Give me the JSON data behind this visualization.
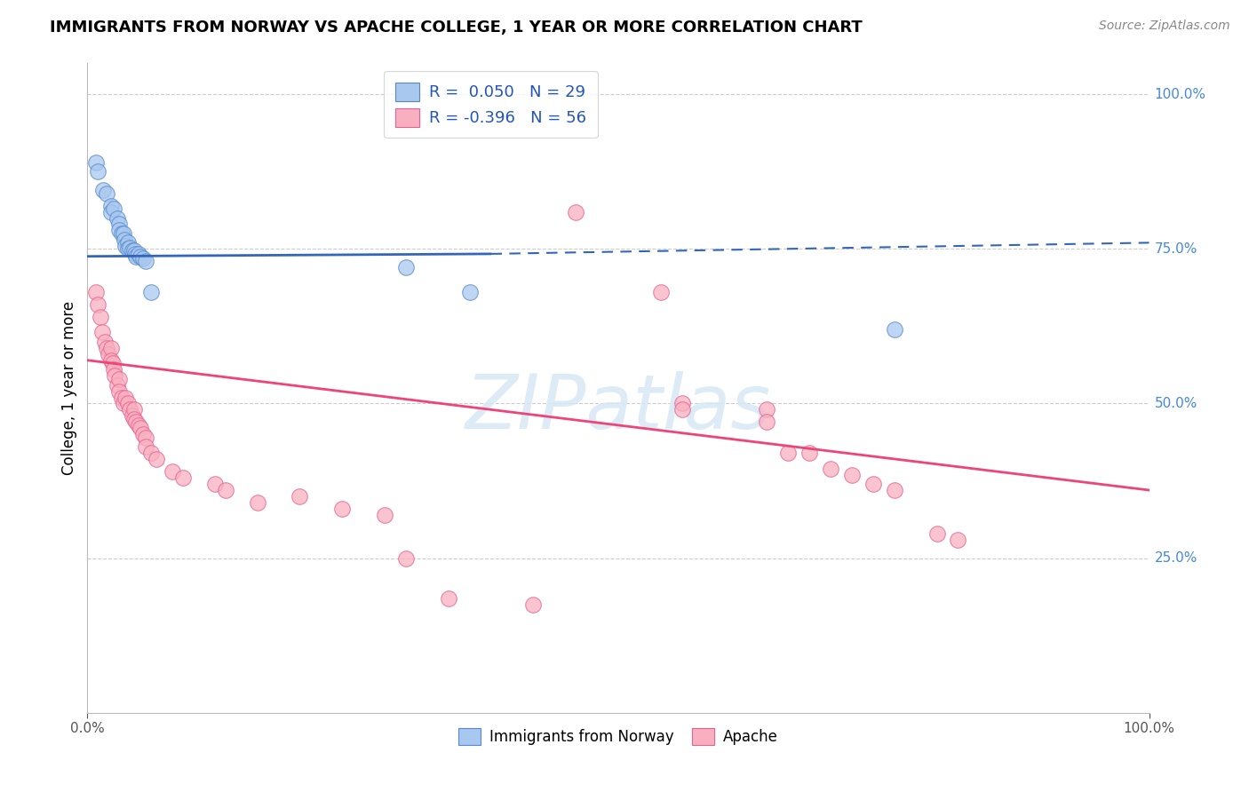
{
  "title": "IMMIGRANTS FROM NORWAY VS APACHE COLLEGE, 1 YEAR OR MORE CORRELATION CHART",
  "source": "Source: ZipAtlas.com",
  "ylabel": "College, 1 year or more",
  "legend_label1": "Immigrants from Norway",
  "legend_label2": "Apache",
  "R1": 0.05,
  "N1": 29,
  "R2": -0.396,
  "N2": 56,
  "blue_fill": "#A8C8F0",
  "blue_edge": "#5588CC",
  "pink_fill": "#F8B0C0",
  "pink_edge": "#E86090",
  "blue_line_color": "#3366BB",
  "pink_line_color": "#EE4477",
  "blue_dots": [
    [
      0.008,
      0.89
    ],
    [
      0.01,
      0.875
    ],
    [
      0.015,
      0.845
    ],
    [
      0.018,
      0.84
    ],
    [
      0.022,
      0.82
    ],
    [
      0.022,
      0.81
    ],
    [
      0.025,
      0.815
    ],
    [
      0.028,
      0.8
    ],
    [
      0.03,
      0.79
    ],
    [
      0.03,
      0.78
    ],
    [
      0.032,
      0.775
    ],
    [
      0.034,
      0.775
    ],
    [
      0.035,
      0.765
    ],
    [
      0.036,
      0.755
    ],
    [
      0.038,
      0.76
    ],
    [
      0.038,
      0.75
    ],
    [
      0.04,
      0.752
    ],
    [
      0.042,
      0.748
    ],
    [
      0.044,
      0.748
    ],
    [
      0.045,
      0.742
    ],
    [
      0.046,
      0.738
    ],
    [
      0.048,
      0.742
    ],
    [
      0.05,
      0.738
    ],
    [
      0.052,
      0.735
    ],
    [
      0.055,
      0.73
    ],
    [
      0.06,
      0.68
    ],
    [
      0.3,
      0.72
    ],
    [
      0.36,
      0.68
    ],
    [
      0.76,
      0.62
    ]
  ],
  "pink_dots": [
    [
      0.008,
      0.68
    ],
    [
      0.01,
      0.66
    ],
    [
      0.012,
      0.64
    ],
    [
      0.014,
      0.615
    ],
    [
      0.016,
      0.6
    ],
    [
      0.018,
      0.59
    ],
    [
      0.02,
      0.58
    ],
    [
      0.022,
      0.59
    ],
    [
      0.022,
      0.57
    ],
    [
      0.024,
      0.565
    ],
    [
      0.025,
      0.555
    ],
    [
      0.026,
      0.545
    ],
    [
      0.028,
      0.53
    ],
    [
      0.03,
      0.54
    ],
    [
      0.03,
      0.52
    ],
    [
      0.032,
      0.51
    ],
    [
      0.034,
      0.5
    ],
    [
      0.036,
      0.51
    ],
    [
      0.038,
      0.5
    ],
    [
      0.04,
      0.49
    ],
    [
      0.042,
      0.48
    ],
    [
      0.044,
      0.49
    ],
    [
      0.044,
      0.475
    ],
    [
      0.046,
      0.47
    ],
    [
      0.048,
      0.465
    ],
    [
      0.05,
      0.46
    ],
    [
      0.052,
      0.45
    ],
    [
      0.055,
      0.445
    ],
    [
      0.055,
      0.43
    ],
    [
      0.06,
      0.42
    ],
    [
      0.065,
      0.41
    ],
    [
      0.08,
      0.39
    ],
    [
      0.09,
      0.38
    ],
    [
      0.12,
      0.37
    ],
    [
      0.13,
      0.36
    ],
    [
      0.16,
      0.34
    ],
    [
      0.2,
      0.35
    ],
    [
      0.24,
      0.33
    ],
    [
      0.28,
      0.32
    ],
    [
      0.3,
      0.25
    ],
    [
      0.34,
      0.185
    ],
    [
      0.42,
      0.175
    ],
    [
      0.46,
      0.81
    ],
    [
      0.54,
      0.68
    ],
    [
      0.56,
      0.5
    ],
    [
      0.56,
      0.49
    ],
    [
      0.64,
      0.49
    ],
    [
      0.64,
      0.47
    ],
    [
      0.66,
      0.42
    ],
    [
      0.68,
      0.42
    ],
    [
      0.7,
      0.395
    ],
    [
      0.72,
      0.385
    ],
    [
      0.74,
      0.37
    ],
    [
      0.76,
      0.36
    ],
    [
      0.8,
      0.29
    ],
    [
      0.82,
      0.28
    ]
  ],
  "blue_line": {
    "x0": 0.0,
    "y0": 0.738,
    "x_solid_end": 0.38,
    "y_solid_end": 0.742,
    "x1": 1.0,
    "y1": 0.76
  },
  "pink_line": {
    "x0": 0.0,
    "y0": 0.57,
    "x1": 1.0,
    "y1": 0.36
  },
  "xlim": [
    0.0,
    1.0
  ],
  "ylim": [
    0.0,
    1.05
  ],
  "ytick_positions": [
    0.0,
    0.25,
    0.5,
    0.75,
    1.0
  ],
  "ytick_labels_right": [
    "",
    "25.0%",
    "50.0%",
    "75.0%",
    "100.0%"
  ],
  "watermark_text": "ZIPatlas",
  "grid_color": "#CCCCCC",
  "grid_style": "--"
}
